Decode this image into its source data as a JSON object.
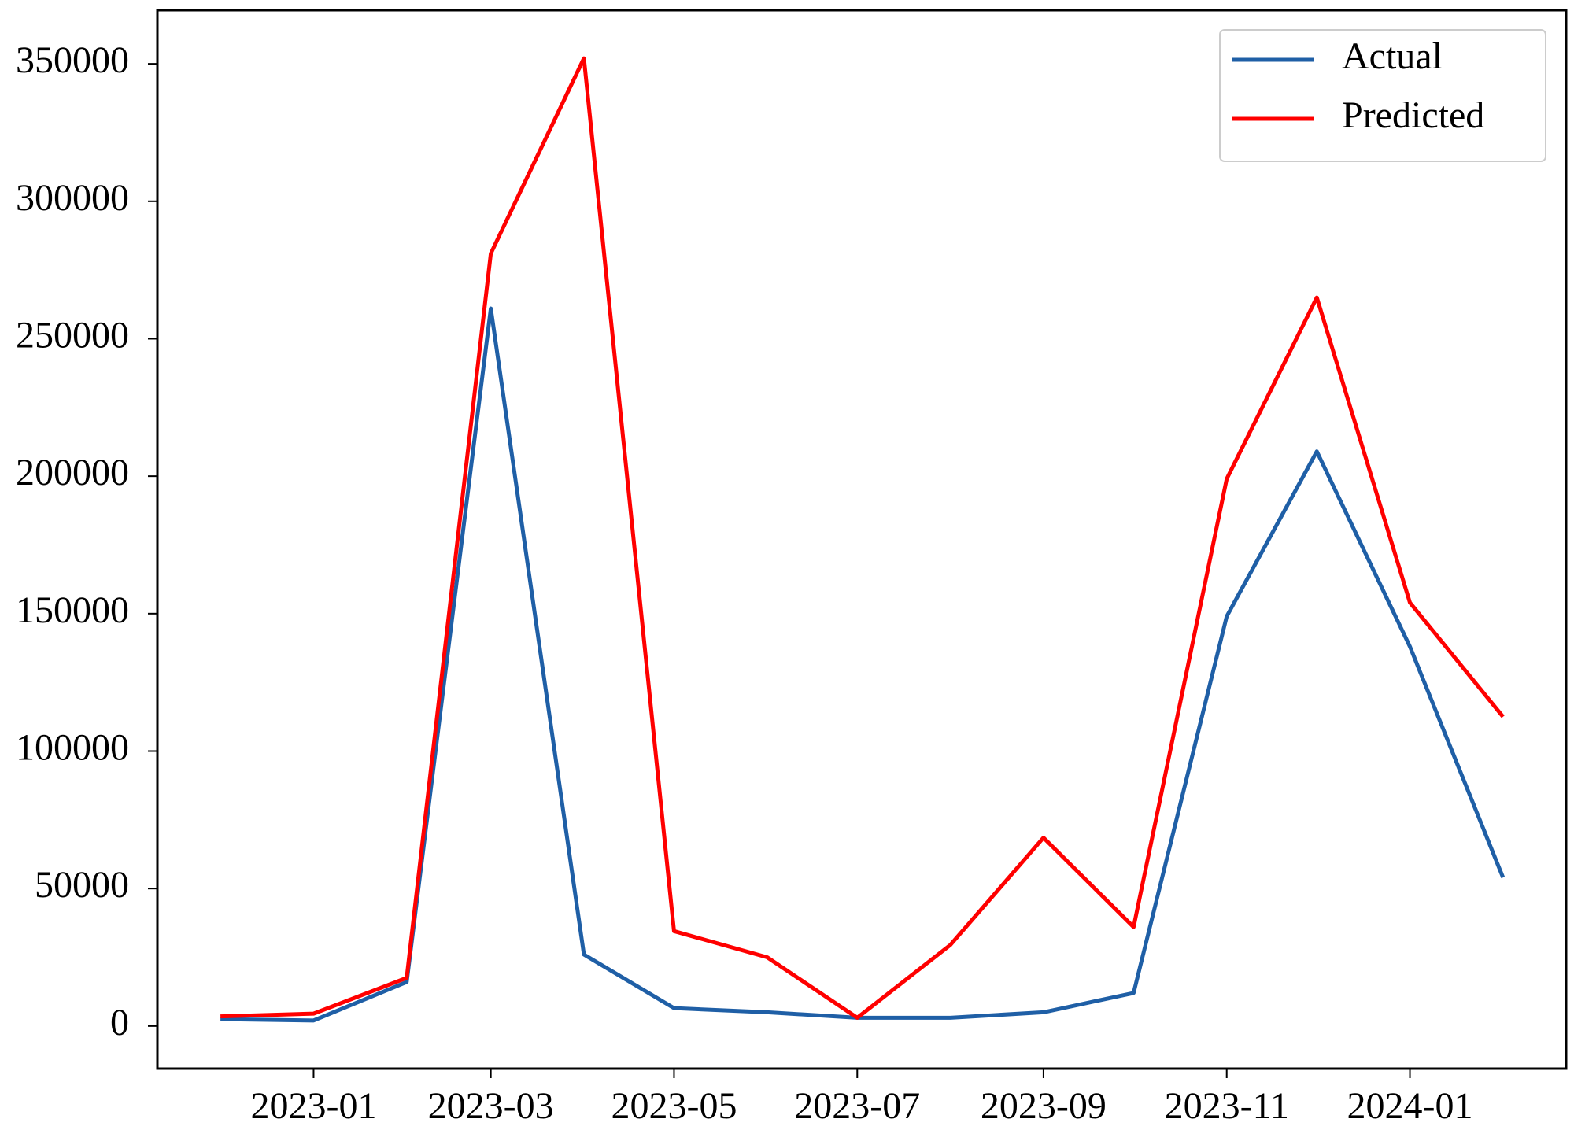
{
  "chart_data": {
    "type": "line",
    "x": [
      "2022-12",
      "2023-01",
      "2023-02",
      "2023-03",
      "2023-04",
      "2023-05",
      "2023-06",
      "2023-07",
      "2023-08",
      "2023-09",
      "2023-10",
      "2023-11",
      "2023-12",
      "2024-01",
      "2024-02"
    ],
    "series": [
      {
        "name": "Actual",
        "color": "#1f5fa6",
        "values": [
          2500,
          2000,
          16000,
          261000,
          26000,
          6500,
          5000,
          3000,
          3000,
          5000,
          12000,
          149000,
          209000,
          138000,
          54000
        ]
      },
      {
        "name": "Predicted",
        "color": "#ff0000",
        "values": [
          3500,
          4500,
          17500,
          281000,
          352000,
          34500,
          25000,
          3000,
          29500,
          68500,
          36000,
          199000,
          265000,
          154000,
          112500
        ]
      }
    ],
    "xlim": [
      "2022-11-10",
      "2024-02-22"
    ],
    "xticks": [
      "2023-01",
      "2023-03",
      "2023-05",
      "2023-07",
      "2023-09",
      "2023-11",
      "2024-01"
    ],
    "ylim": [
      -15500,
      369500
    ],
    "yticks": [
      0,
      50000,
      100000,
      150000,
      200000,
      250000,
      300000,
      350000
    ],
    "legend": "upper-right"
  }
}
